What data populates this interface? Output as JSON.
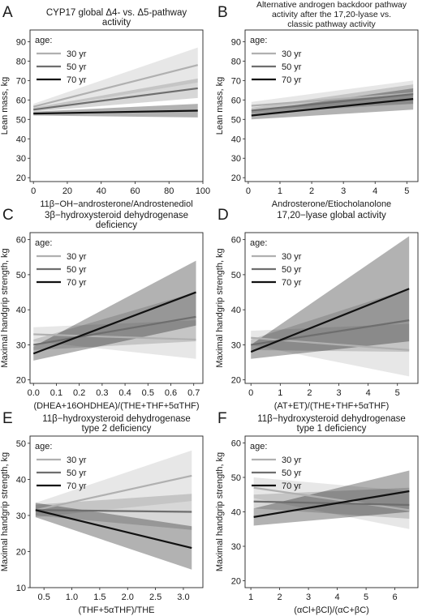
{
  "figure": {
    "age_legend": {
      "title": "age:",
      "entries": [
        {
          "label": "30 yr",
          "color": "#b0b0b0"
        },
        {
          "label": "50 yr",
          "color": "#6e6e6e"
        },
        {
          "label": "70 yr",
          "color": "#111111"
        }
      ]
    }
  },
  "chart_data": [
    {
      "type": "line",
      "panel_letter": "A",
      "title": "CYP17 global Δ4- vs. Δ5-pathway activity",
      "xlabel": "11β−OH−androsterone/Androstenediol",
      "ylabel": "Lean mass, kg",
      "xlim": [
        -2,
        100
      ],
      "ylim": [
        18,
        96
      ],
      "xticks": [
        0,
        20,
        40,
        60,
        80,
        100
      ],
      "yticks": [
        20,
        30,
        40,
        50,
        60,
        70,
        80,
        90
      ],
      "grid": false,
      "legend_position": "top-left",
      "series": [
        {
          "name": "30 yr",
          "x": [
            0,
            97
          ],
          "y": [
            56.5,
            78
          ],
          "lower": [
            55,
            69
          ],
          "upper": [
            58,
            87
          ]
        },
        {
          "name": "50 yr",
          "x": [
            0,
            97
          ],
          "y": [
            55,
            66
          ],
          "lower": [
            54,
            61
          ],
          "upper": [
            56,
            71
          ]
        },
        {
          "name": "70 yr",
          "x": [
            0,
            97
          ],
          "y": [
            53,
            54.5
          ],
          "lower": [
            52,
            51
          ],
          "upper": [
            54,
            58
          ]
        }
      ]
    },
    {
      "type": "line",
      "panel_letter": "B",
      "title": "Alternative androgen backdoor pathway activity after the 17,20-lyase vs. classic pathway activity",
      "xlabel": "Androsterone/Etiocholanolone",
      "ylabel": "Lean mass, kg",
      "xlim": [
        -0.1,
        5.35
      ],
      "ylim": [
        18,
        96
      ],
      "xticks": [
        0,
        1,
        2,
        3,
        4,
        5
      ],
      "yticks": [
        20,
        30,
        40,
        50,
        60,
        70,
        80,
        90
      ],
      "grid": false,
      "legend_position": "top-left",
      "series": [
        {
          "name": "30 yr",
          "x": [
            0.1,
            5.2
          ],
          "y": [
            57,
            63.5
          ],
          "lower": [
            55,
            58
          ],
          "upper": [
            59,
            70
          ]
        },
        {
          "name": "50 yr",
          "x": [
            0.1,
            5.2
          ],
          "y": [
            54.5,
            63
          ],
          "lower": [
            53,
            58
          ],
          "upper": [
            56,
            68
          ]
        },
        {
          "name": "70 yr",
          "x": [
            0.1,
            5.2
          ],
          "y": [
            52,
            60.5
          ],
          "lower": [
            50,
            55
          ],
          "upper": [
            54,
            66
          ]
        }
      ]
    },
    {
      "type": "line",
      "panel_letter": "C",
      "title": "3β−hydroxysteroid dehydrogenase deficiency",
      "xlabel": "(DHEA+16OHDHEA)/(THE+THF+5αTHF)",
      "ylabel": "Maximal handgrip strength, kg",
      "xlim": [
        -0.015,
        0.74
      ],
      "ylim": [
        19,
        62
      ],
      "xticks": [
        0.0,
        0.1,
        0.2,
        0.3,
        0.4,
        0.5,
        0.6,
        0.7
      ],
      "yticks": [
        20,
        30,
        40,
        50,
        60
      ],
      "grid": false,
      "legend_position": "top-left",
      "series": [
        {
          "name": "30 yr",
          "x": [
            0,
            0.71
          ],
          "y": [
            33,
            31.5
          ],
          "lower": [
            31,
            26
          ],
          "upper": [
            35,
            37
          ]
        },
        {
          "name": "50 yr",
          "x": [
            0,
            0.71
          ],
          "y": [
            30,
            38
          ],
          "lower": [
            28.5,
            31
          ],
          "upper": [
            31.5,
            45
          ]
        },
        {
          "name": "70 yr",
          "x": [
            0,
            0.71
          ],
          "y": [
            27.5,
            45
          ],
          "lower": [
            25.5,
            35.5
          ],
          "upper": [
            29.5,
            54
          ]
        }
      ]
    },
    {
      "type": "line",
      "panel_letter": "D",
      "title": "17,20−lyase global activity",
      "xlabel": "(AT+ET)/(THE+THF+5αTHF)",
      "ylabel": "Maximal handgrip strength, kg",
      "xlim": [
        -0.2,
        5.7
      ],
      "ylim": [
        19,
        62
      ],
      "xticks": [
        0,
        1,
        2,
        3,
        4,
        5
      ],
      "yticks": [
        20,
        30,
        40,
        50,
        60
      ],
      "grid": false,
      "legend_position": "top-left",
      "series": [
        {
          "name": "30 yr",
          "x": [
            0,
            5.4
          ],
          "y": [
            32,
            28.5
          ],
          "lower": [
            30,
            21
          ],
          "upper": [
            34,
            36
          ]
        },
        {
          "name": "50 yr",
          "x": [
            0,
            5.4
          ],
          "y": [
            30,
            37
          ],
          "lower": [
            28.5,
            28
          ],
          "upper": [
            31.5,
            46
          ]
        },
        {
          "name": "70 yr",
          "x": [
            0,
            5.4
          ],
          "y": [
            28,
            46
          ],
          "lower": [
            26,
            31
          ],
          "upper": [
            30,
            61
          ]
        }
      ]
    },
    {
      "type": "line",
      "panel_letter": "E",
      "title": "11β−hydroxysteroid dehydrogenase type 2 deficiency",
      "xlabel": "(THF+5αTHF)/THE",
      "ylabel": "Maximal handgrip strength, kg",
      "xlim": [
        0.25,
        3.35
      ],
      "ylim": [
        10,
        52
      ],
      "xticks": [
        0.5,
        1.0,
        1.5,
        2.0,
        2.5,
        3.0
      ],
      "yticks": [
        10,
        20,
        30,
        40,
        50
      ],
      "grid": false,
      "legend_position": "top-left",
      "series": [
        {
          "name": "30 yr",
          "x": [
            0.35,
            3.15
          ],
          "y": [
            31.5,
            41
          ],
          "lower": [
            29.5,
            34
          ],
          "upper": [
            33.5,
            48
          ]
        },
        {
          "name": "50 yr",
          "x": [
            0.35,
            3.15
          ],
          "y": [
            31.5,
            31
          ],
          "lower": [
            30,
            26
          ],
          "upper": [
            33,
            36
          ]
        },
        {
          "name": "70 yr",
          "x": [
            0.35,
            3.15
          ],
          "y": [
            31.5,
            21
          ],
          "lower": [
            29.5,
            15
          ],
          "upper": [
            33.5,
            27
          ]
        }
      ]
    },
    {
      "type": "line",
      "panel_letter": "F",
      "title": "11β−hydroxysteroid dehydrogenase type 1 deficiency",
      "xlabel": "(αCl+βCl)/(αC+βC)",
      "ylabel": "Maximal handgrip strength, kg",
      "xlim": [
        0.8,
        6.8
      ],
      "ylim": [
        18,
        62
      ],
      "xticks": [
        1,
        2,
        3,
        4,
        5,
        6
      ],
      "yticks": [
        20,
        30,
        40,
        50,
        60
      ],
      "grid": false,
      "legend_position": "top-left",
      "series": [
        {
          "name": "30 yr",
          "x": [
            1.1,
            6.5
          ],
          "y": [
            47,
            40.5
          ],
          "lower": [
            44,
            35
          ],
          "upper": [
            50,
            46
          ]
        },
        {
          "name": "50 yr",
          "x": [
            1.1,
            6.5
          ],
          "y": [
            43,
            42
          ],
          "lower": [
            41,
            38
          ],
          "upper": [
            45,
            47
          ]
        },
        {
          "name": "70 yr",
          "x": [
            1.1,
            6.5
          ],
          "y": [
            38.5,
            46
          ],
          "lower": [
            36,
            40
          ],
          "upper": [
            41,
            52
          ]
        }
      ]
    }
  ]
}
